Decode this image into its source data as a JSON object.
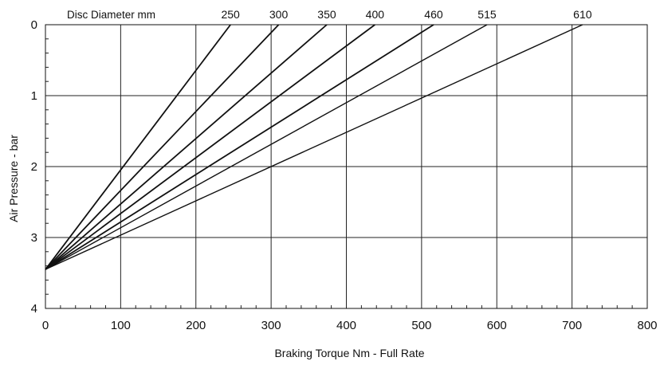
{
  "chart_data": {
    "type": "line",
    "title": "",
    "legend_title": "Disc Diameter mm",
    "xlabel": "Braking Torque Nm - Full Rate",
    "ylabel": "Air Pressure - bar",
    "xlim": [
      0,
      800
    ],
    "ylim": [
      0,
      4
    ],
    "y_inverted": true,
    "grid": true,
    "x_ticks": [
      "0",
      "100",
      "200",
      "300",
      "400",
      "500",
      "600",
      "700",
      "800"
    ],
    "y_ticks": [
      "0",
      "1",
      "2",
      "3",
      "4"
    ],
    "series": [
      {
        "name": "250",
        "x": [
          0,
          246
        ],
        "y": [
          3.45,
          0
        ]
      },
      {
        "name": "300",
        "x": [
          0,
          310
        ],
        "y": [
          3.45,
          0
        ]
      },
      {
        "name": "350",
        "x": [
          0,
          374
        ],
        "y": [
          3.45,
          0
        ]
      },
      {
        "name": "400",
        "x": [
          0,
          438
        ],
        "y": [
          3.45,
          0
        ]
      },
      {
        "name": "460",
        "x": [
          0,
          516
        ],
        "y": [
          3.45,
          0
        ]
      },
      {
        "name": "515",
        "x": [
          0,
          587
        ],
        "y": [
          3.45,
          0
        ]
      },
      {
        "name": "610",
        "x": [
          0,
          714
        ],
        "y": [
          3.45,
          0
        ]
      }
    ]
  }
}
